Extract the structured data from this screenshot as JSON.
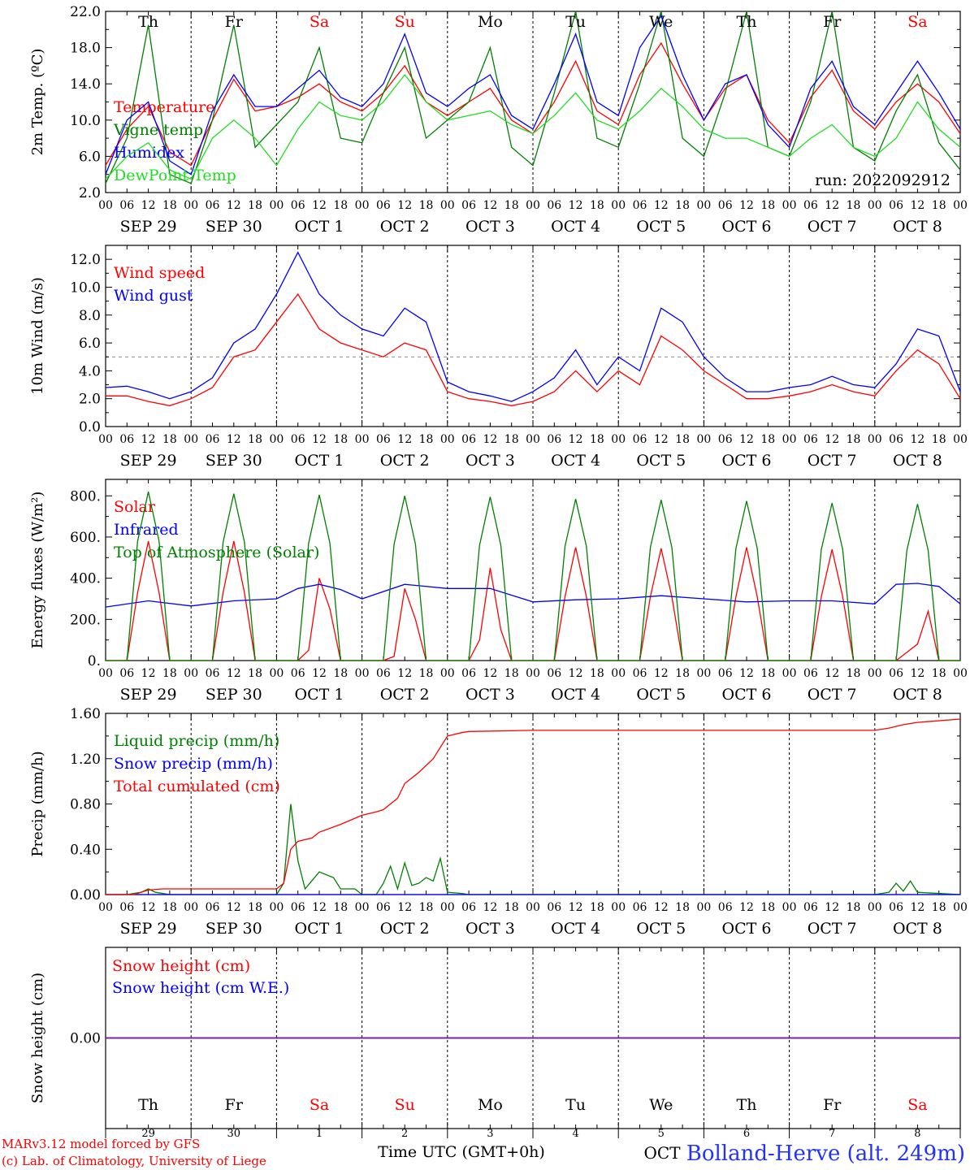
{
  "chart_data": [
    {
      "type": "line",
      "ylabel": "2m Temp. (ºC)",
      "ylim": [
        2.0,
        22.0
      ],
      "yticks": [
        "2.0",
        "6.0",
        "10.0",
        "14.0",
        "18.0",
        "22.0"
      ],
      "run_label": "run: 2022092912",
      "series": [
        {
          "name": "Temperature",
          "color": "#ff0000",
          "x": [
            0,
            6,
            12,
            18,
            24,
            30,
            36,
            42,
            48,
            54,
            60,
            66,
            72,
            78,
            84,
            90,
            96,
            102,
            108,
            114,
            120,
            126,
            132,
            138,
            144,
            150,
            156,
            162,
            168,
            174,
            180,
            186,
            192,
            198,
            204,
            210,
            216,
            222,
            228,
            234,
            240
          ],
          "values": [
            5.0,
            9.0,
            11.5,
            6.5,
            5.0,
            10.0,
            14.5,
            11.0,
            11.5,
            12.5,
            14.0,
            12.0,
            11.0,
            13.0,
            16.0,
            12.0,
            10.5,
            12.0,
            13.5,
            10.0,
            8.5,
            12.0,
            16.5,
            11.0,
            9.5,
            15.0,
            18.5,
            14.0,
            10.0,
            13.5,
            15.0,
            10.0,
            7.5,
            12.5,
            15.5,
            11.0,
            9.0,
            12.0,
            14.0,
            12.0,
            8.5
          ]
        },
        {
          "name": "Vigne temp",
          "color": "#008000",
          "x": [
            0,
            6,
            12,
            18,
            24,
            30,
            36,
            42,
            48,
            54,
            60,
            66,
            72,
            78,
            84,
            90,
            96,
            102,
            108,
            114,
            120,
            126,
            132,
            138,
            144,
            150,
            156,
            162,
            168,
            174,
            180,
            186,
            192,
            198,
            204,
            210,
            216,
            222,
            228,
            234,
            240
          ],
          "values": [
            3.0,
            8.0,
            20.5,
            4.0,
            3.0,
            10.0,
            20.5,
            7.0,
            9.5,
            12.0,
            18.0,
            8.0,
            7.5,
            13.0,
            18.0,
            8.0,
            10.0,
            12.0,
            18.0,
            7.0,
            5.0,
            13.0,
            22.0,
            8.0,
            7.0,
            14.0,
            22.0,
            8.0,
            6.0,
            13.0,
            22.0,
            7.0,
            6.0,
            12.0,
            22.0,
            7.0,
            5.5,
            11.0,
            15.0,
            7.5,
            4.5
          ]
        },
        {
          "name": "Humidex",
          "color": "#0000ff",
          "x": [
            0,
            6,
            12,
            18,
            24,
            30,
            36,
            42,
            48,
            54,
            60,
            66,
            72,
            78,
            84,
            90,
            96,
            102,
            108,
            114,
            120,
            126,
            132,
            138,
            144,
            150,
            156,
            162,
            168,
            174,
            180,
            186,
            192,
            198,
            204,
            210,
            216,
            222,
            228,
            234,
            240
          ],
          "values": [
            4.0,
            10.0,
            12.0,
            5.5,
            4.0,
            11.0,
            15.0,
            11.5,
            11.5,
            13.5,
            15.5,
            12.5,
            11.5,
            14.0,
            19.5,
            13.0,
            11.5,
            13.5,
            15.0,
            10.5,
            9.0,
            14.0,
            19.5,
            12.0,
            10.5,
            18.0,
            21.5,
            15.0,
            10.0,
            14.0,
            15.0,
            9.5,
            7.0,
            13.5,
            16.5,
            11.5,
            9.5,
            13.0,
            16.5,
            13.0,
            9.0
          ]
        },
        {
          "name": "DewPoint Temp",
          "color": "#22dd22",
          "x": [
            0,
            6,
            12,
            18,
            24,
            30,
            36,
            42,
            48,
            54,
            60,
            66,
            72,
            78,
            84,
            90,
            96,
            102,
            108,
            114,
            120,
            126,
            132,
            138,
            144,
            150,
            156,
            162,
            168,
            174,
            180,
            186,
            192,
            198,
            204,
            210,
            216,
            222,
            228,
            234,
            240
          ],
          "values": [
            3.5,
            6.0,
            7.5,
            4.5,
            3.5,
            8.0,
            10.0,
            8.0,
            5.0,
            9.0,
            12.0,
            10.5,
            10.0,
            12.0,
            15.0,
            12.0,
            10.0,
            10.5,
            11.0,
            9.5,
            8.5,
            10.5,
            13.0,
            10.0,
            9.0,
            11.0,
            13.5,
            11.5,
            9.0,
            8.0,
            8.0,
            7.0,
            6.0,
            8.0,
            9.5,
            7.0,
            6.0,
            8.0,
            12.0,
            9.0,
            7.0
          ]
        }
      ]
    },
    {
      "type": "line",
      "ylabel": "10m Wind (m/s)",
      "ylim": [
        0.0,
        13.0
      ],
      "yticks": [
        "0.0",
        "2.0",
        "4.0",
        "6.0",
        "8.0",
        "10.0",
        "12.0"
      ],
      "threshold": 5.0,
      "series": [
        {
          "name": "Wind speed",
          "color": "#ff0000",
          "x": [
            0,
            6,
            12,
            18,
            24,
            30,
            36,
            42,
            48,
            54,
            60,
            66,
            72,
            78,
            84,
            90,
            96,
            102,
            108,
            114,
            120,
            126,
            132,
            138,
            144,
            150,
            156,
            162,
            168,
            174,
            180,
            186,
            192,
            198,
            204,
            210,
            216,
            222,
            228,
            234,
            240
          ],
          "values": [
            2.2,
            2.2,
            1.8,
            1.5,
            2.0,
            2.8,
            5.0,
            5.5,
            7.5,
            9.5,
            7.0,
            6.0,
            5.5,
            5.0,
            6.0,
            5.5,
            2.5,
            2.0,
            1.8,
            1.5,
            1.8,
            2.5,
            4.0,
            2.5,
            4.0,
            3.0,
            6.5,
            5.5,
            4.0,
            3.0,
            2.0,
            2.0,
            2.2,
            2.5,
            3.0,
            2.5,
            2.2,
            4.0,
            5.5,
            4.5,
            2.0
          ]
        },
        {
          "name": "Wind gust",
          "color": "#0000ff",
          "x": [
            0,
            6,
            12,
            18,
            24,
            30,
            36,
            42,
            48,
            54,
            60,
            66,
            72,
            78,
            84,
            90,
            96,
            102,
            108,
            114,
            120,
            126,
            132,
            138,
            144,
            150,
            156,
            162,
            168,
            174,
            180,
            186,
            192,
            198,
            204,
            210,
            216,
            222,
            228,
            234,
            240
          ],
          "values": [
            2.8,
            2.9,
            2.5,
            2.0,
            2.5,
            3.5,
            6.0,
            7.0,
            9.5,
            12.5,
            9.5,
            8.0,
            7.0,
            6.5,
            8.5,
            7.5,
            3.2,
            2.5,
            2.2,
            1.8,
            2.5,
            3.5,
            5.5,
            3.0,
            5.0,
            4.0,
            8.5,
            7.5,
            5.0,
            3.5,
            2.5,
            2.5,
            2.8,
            3.0,
            3.6,
            3.0,
            2.8,
            4.5,
            7.0,
            6.5,
            2.5
          ]
        }
      ]
    },
    {
      "type": "line",
      "ylabel": "Energy fluxes (W/m²)",
      "ylim": [
        0,
        880
      ],
      "yticks": [
        "0.",
        "200.",
        "400.",
        "600.",
        "800."
      ],
      "series": [
        {
          "name": "Solar",
          "color": "#ff0000",
          "x": [
            0,
            6,
            9,
            12,
            15,
            18,
            24,
            30,
            33,
            36,
            39,
            42,
            48,
            54,
            57,
            60,
            63,
            66,
            72,
            78,
            81,
            84,
            87,
            90,
            96,
            102,
            105,
            108,
            111,
            114,
            120,
            126,
            129,
            132,
            135,
            138,
            144,
            150,
            153,
            156,
            159,
            162,
            168,
            174,
            177,
            180,
            183,
            186,
            192,
            198,
            201,
            204,
            207,
            210,
            216,
            222,
            225,
            228,
            231,
            234,
            240
          ],
          "values": [
            0,
            0,
            330,
            580,
            330,
            0,
            0,
            0,
            330,
            580,
            330,
            0,
            0,
            0,
            50,
            400,
            250,
            0,
            0,
            0,
            20,
            350,
            200,
            0,
            0,
            0,
            100,
            450,
            150,
            0,
            0,
            0,
            310,
            550,
            310,
            0,
            0,
            0,
            310,
            545,
            310,
            0,
            0,
            0,
            310,
            550,
            310,
            0,
            0,
            0,
            310,
            540,
            310,
            0,
            0,
            0,
            40,
            80,
            240,
            0,
            0
          ]
        },
        {
          "name": "Infrared",
          "color": "#0000ff",
          "x": [
            0,
            12,
            24,
            36,
            48,
            54,
            60,
            66,
            72,
            84,
            96,
            108,
            120,
            132,
            144,
            156,
            168,
            180,
            192,
            204,
            216,
            222,
            228,
            234,
            240
          ],
          "values": [
            260,
            290,
            265,
            290,
            300,
            350,
            370,
            345,
            300,
            370,
            350,
            350,
            285,
            295,
            300,
            315,
            300,
            285,
            290,
            290,
            275,
            370,
            375,
            360,
            275
          ]
        },
        {
          "name": "Top of Atmosphere (Solar)",
          "color": "#008000",
          "x": [
            0,
            6,
            9,
            12,
            15,
            18,
            24,
            30,
            33,
            36,
            39,
            42,
            48,
            54,
            57,
            60,
            63,
            66,
            72,
            78,
            81,
            84,
            87,
            90,
            96,
            102,
            105,
            108,
            111,
            114,
            120,
            126,
            129,
            132,
            135,
            138,
            144,
            150,
            153,
            156,
            159,
            162,
            168,
            174,
            177,
            180,
            183,
            186,
            192,
            198,
            201,
            204,
            207,
            210,
            216,
            222,
            225,
            228,
            231,
            234,
            240
          ],
          "values": [
            0,
            0,
            580,
            820,
            580,
            0,
            0,
            0,
            575,
            810,
            575,
            0,
            0,
            0,
            570,
            805,
            570,
            0,
            0,
            0,
            565,
            800,
            565,
            0,
            0,
            0,
            560,
            795,
            560,
            0,
            0,
            0,
            555,
            785,
            555,
            0,
            0,
            0,
            550,
            780,
            550,
            0,
            0,
            0,
            545,
            775,
            545,
            0,
            0,
            0,
            540,
            765,
            540,
            0,
            0,
            0,
            535,
            760,
            535,
            0,
            0
          ]
        }
      ]
    },
    {
      "type": "line",
      "ylabel": "Precip (mm/h)",
      "ylim": [
        0.0,
        1.6
      ],
      "yticks": [
        "0.00",
        "0.40",
        "0.80",
        "1.20",
        "1.60"
      ],
      "series": [
        {
          "name": "Liquid precip (mm/h)",
          "color": "#008000",
          "x": [
            0,
            6,
            10,
            12,
            14,
            18,
            24,
            48,
            50,
            52,
            54,
            56,
            60,
            64,
            66,
            70,
            72,
            76,
            78,
            80,
            82,
            84,
            86,
            88,
            90,
            92,
            94,
            96,
            100,
            102,
            216,
            220,
            222,
            224,
            226,
            228,
            240
          ],
          "values": [
            0,
            0,
            0.02,
            0.05,
            0.02,
            0,
            0,
            0,
            0.1,
            0.8,
            0.3,
            0.05,
            0.2,
            0.15,
            0.05,
            0.05,
            0,
            0,
            0.1,
            0.25,
            0.05,
            0.28,
            0.08,
            0.1,
            0.15,
            0.12,
            0.32,
            0.02,
            0.01,
            0,
            0,
            0.02,
            0.1,
            0.03,
            0.12,
            0.02,
            0
          ]
        },
        {
          "name": "Snow precip (mm/h)",
          "color": "#0000ff",
          "x": [
            0,
            240
          ],
          "values": [
            0,
            0
          ]
        },
        {
          "name": "Total cumulated (cm)",
          "color": "#ff0000",
          "x": [
            0,
            8,
            12,
            16,
            48,
            50,
            52,
            54,
            58,
            60,
            66,
            72,
            76,
            78,
            82,
            84,
            88,
            92,
            94,
            96,
            100,
            102,
            120,
            144,
            168,
            192,
            216,
            220,
            224,
            228,
            240
          ],
          "values": [
            0,
            0,
            0.04,
            0.05,
            0.05,
            0.1,
            0.4,
            0.47,
            0.5,
            0.55,
            0.62,
            0.7,
            0.73,
            0.75,
            0.85,
            0.98,
            1.08,
            1.2,
            1.3,
            1.4,
            1.43,
            1.44,
            1.45,
            1.45,
            1.45,
            1.45,
            1.45,
            1.47,
            1.5,
            1.52,
            1.55
          ]
        }
      ]
    },
    {
      "type": "line",
      "ylabel": "Snow height (cm)",
      "yticks": [
        "0.00"
      ],
      "xlabel": "Time UTC (GMT+0h)",
      "series": [
        {
          "name": "Snow height (cm)",
          "color": "#ff0000",
          "x": [
            0,
            240
          ],
          "values": [
            0,
            0
          ]
        },
        {
          "name": "Snow height (cm W.E.)",
          "color": "#0000ff",
          "x": [
            0,
            240
          ],
          "values": [
            0,
            0
          ]
        }
      ]
    }
  ],
  "x_axis": {
    "hour_ticks": [
      "00",
      "06",
      "12",
      "18"
    ],
    "last_tick": "00",
    "dates": [
      "SEP 29",
      "SEP 30",
      "OCT  1",
      "OCT  2",
      "OCT  3",
      "OCT  4",
      "OCT  5",
      "OCT  6",
      "OCT  7",
      "OCT  8"
    ],
    "weekdays": [
      "Th",
      "Fr",
      "Sa",
      "Su",
      "Mo",
      "Tu",
      "We",
      "Th",
      "Fr",
      "Sa"
    ],
    "weekday_colors": [
      "#000000",
      "#000000",
      "#ff0000",
      "#ff0000",
      "#000000",
      "#000000",
      "#000000",
      "#000000",
      "#000000",
      "#ff0000"
    ],
    "day_numbers": [
      "29",
      "30",
      "1",
      "2",
      "3",
      "4",
      "5",
      "6",
      "7",
      "8"
    ],
    "month_marker": "OCT"
  },
  "footer": {
    "model_line": "MARv3.12 model forced by GFS",
    "copyright_line": "(c) Lab. of Climatology, University of Liege",
    "station": "Bolland-Herve (alt. 249m)"
  }
}
